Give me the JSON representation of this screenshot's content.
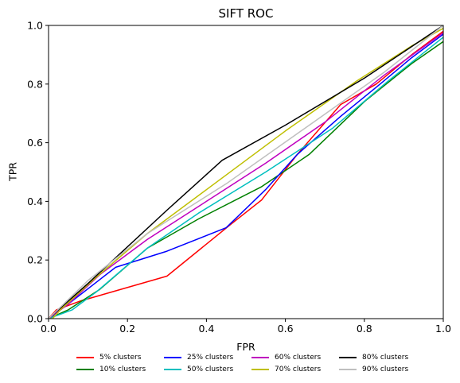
{
  "chart_data": {
    "type": "line",
    "title": "SIFT ROC",
    "xlabel": "FPR",
    "ylabel": "TPR",
    "xlim": [
      0.0,
      1.0
    ],
    "ylim": [
      0.0,
      1.0
    ],
    "xticks": [
      "0.0",
      "0.2",
      "0.4",
      "0.6",
      "0.8",
      "1.0"
    ],
    "yticks": [
      "0.0",
      "0.2",
      "0.4",
      "0.6",
      "0.8",
      "1.0"
    ],
    "grid": false,
    "legend_position": "bottom",
    "series": [
      {
        "name": "5% clusters",
        "color": "#ff0000",
        "x": [
          0.0,
          0.02,
          0.08,
          0.3,
          0.46,
          0.54,
          0.63,
          0.74,
          0.83,
          0.92,
          1.0
        ],
        "y": [
          0.0,
          0.03,
          0.06,
          0.145,
          0.32,
          0.405,
          0.56,
          0.73,
          0.8,
          0.9,
          0.98
        ]
      },
      {
        "name": "10% clusters",
        "color": "#008000",
        "x": [
          0.0,
          0.05,
          0.13,
          0.25,
          0.38,
          0.54,
          0.66,
          0.8,
          0.92,
          1.0
        ],
        "y": [
          0.0,
          0.03,
          0.1,
          0.24,
          0.34,
          0.45,
          0.56,
          0.74,
          0.87,
          0.945
        ]
      },
      {
        "name": "25% clusters",
        "color": "#0000ff",
        "x": [
          0.0,
          0.05,
          0.17,
          0.3,
          0.45,
          0.55,
          0.63,
          0.74,
          0.84,
          0.92,
          1.0
        ],
        "y": [
          0.0,
          0.05,
          0.175,
          0.23,
          0.31,
          0.44,
          0.56,
          0.69,
          0.8,
          0.89,
          0.97
        ]
      },
      {
        "name": "50% clusters",
        "color": "#00bfbf",
        "x": [
          0.0,
          0.06,
          0.12,
          0.25,
          0.38,
          0.55,
          0.72,
          0.86,
          1.0
        ],
        "y": [
          0.0,
          0.03,
          0.09,
          0.24,
          0.36,
          0.5,
          0.65,
          0.81,
          0.96
        ]
      },
      {
        "name": "60% clusters",
        "color": "#bf00bf",
        "x": [
          0.0,
          0.05,
          0.13,
          0.25,
          0.4,
          0.55,
          0.7,
          0.85,
          1.0
        ],
        "y": [
          0.0,
          0.05,
          0.15,
          0.27,
          0.4,
          0.53,
          0.67,
          0.83,
          0.975
        ]
      },
      {
        "name": "70% clusters",
        "color": "#bfbf00",
        "x": [
          0.0,
          0.01,
          0.03,
          0.12,
          0.25,
          0.42,
          0.6,
          0.78,
          0.92,
          1.0
        ],
        "y": [
          0.0,
          0.0,
          0.03,
          0.14,
          0.29,
          0.46,
          0.64,
          0.81,
          0.93,
          0.99
        ]
      },
      {
        "name": "80% clusters",
        "color": "#000000",
        "x": [
          0.0,
          0.1,
          0.3,
          0.44,
          0.6,
          0.8,
          1.0
        ],
        "y": [
          0.0,
          0.12,
          0.37,
          0.54,
          0.66,
          0.82,
          1.0
        ]
      },
      {
        "name": "90% clusters",
        "color": "#bfbfbf",
        "x": [
          0.0,
          0.1,
          0.25,
          0.45,
          0.65,
          0.85,
          1.0
        ],
        "y": [
          0.0,
          0.13,
          0.29,
          0.46,
          0.65,
          0.84,
          1.0
        ]
      }
    ]
  }
}
